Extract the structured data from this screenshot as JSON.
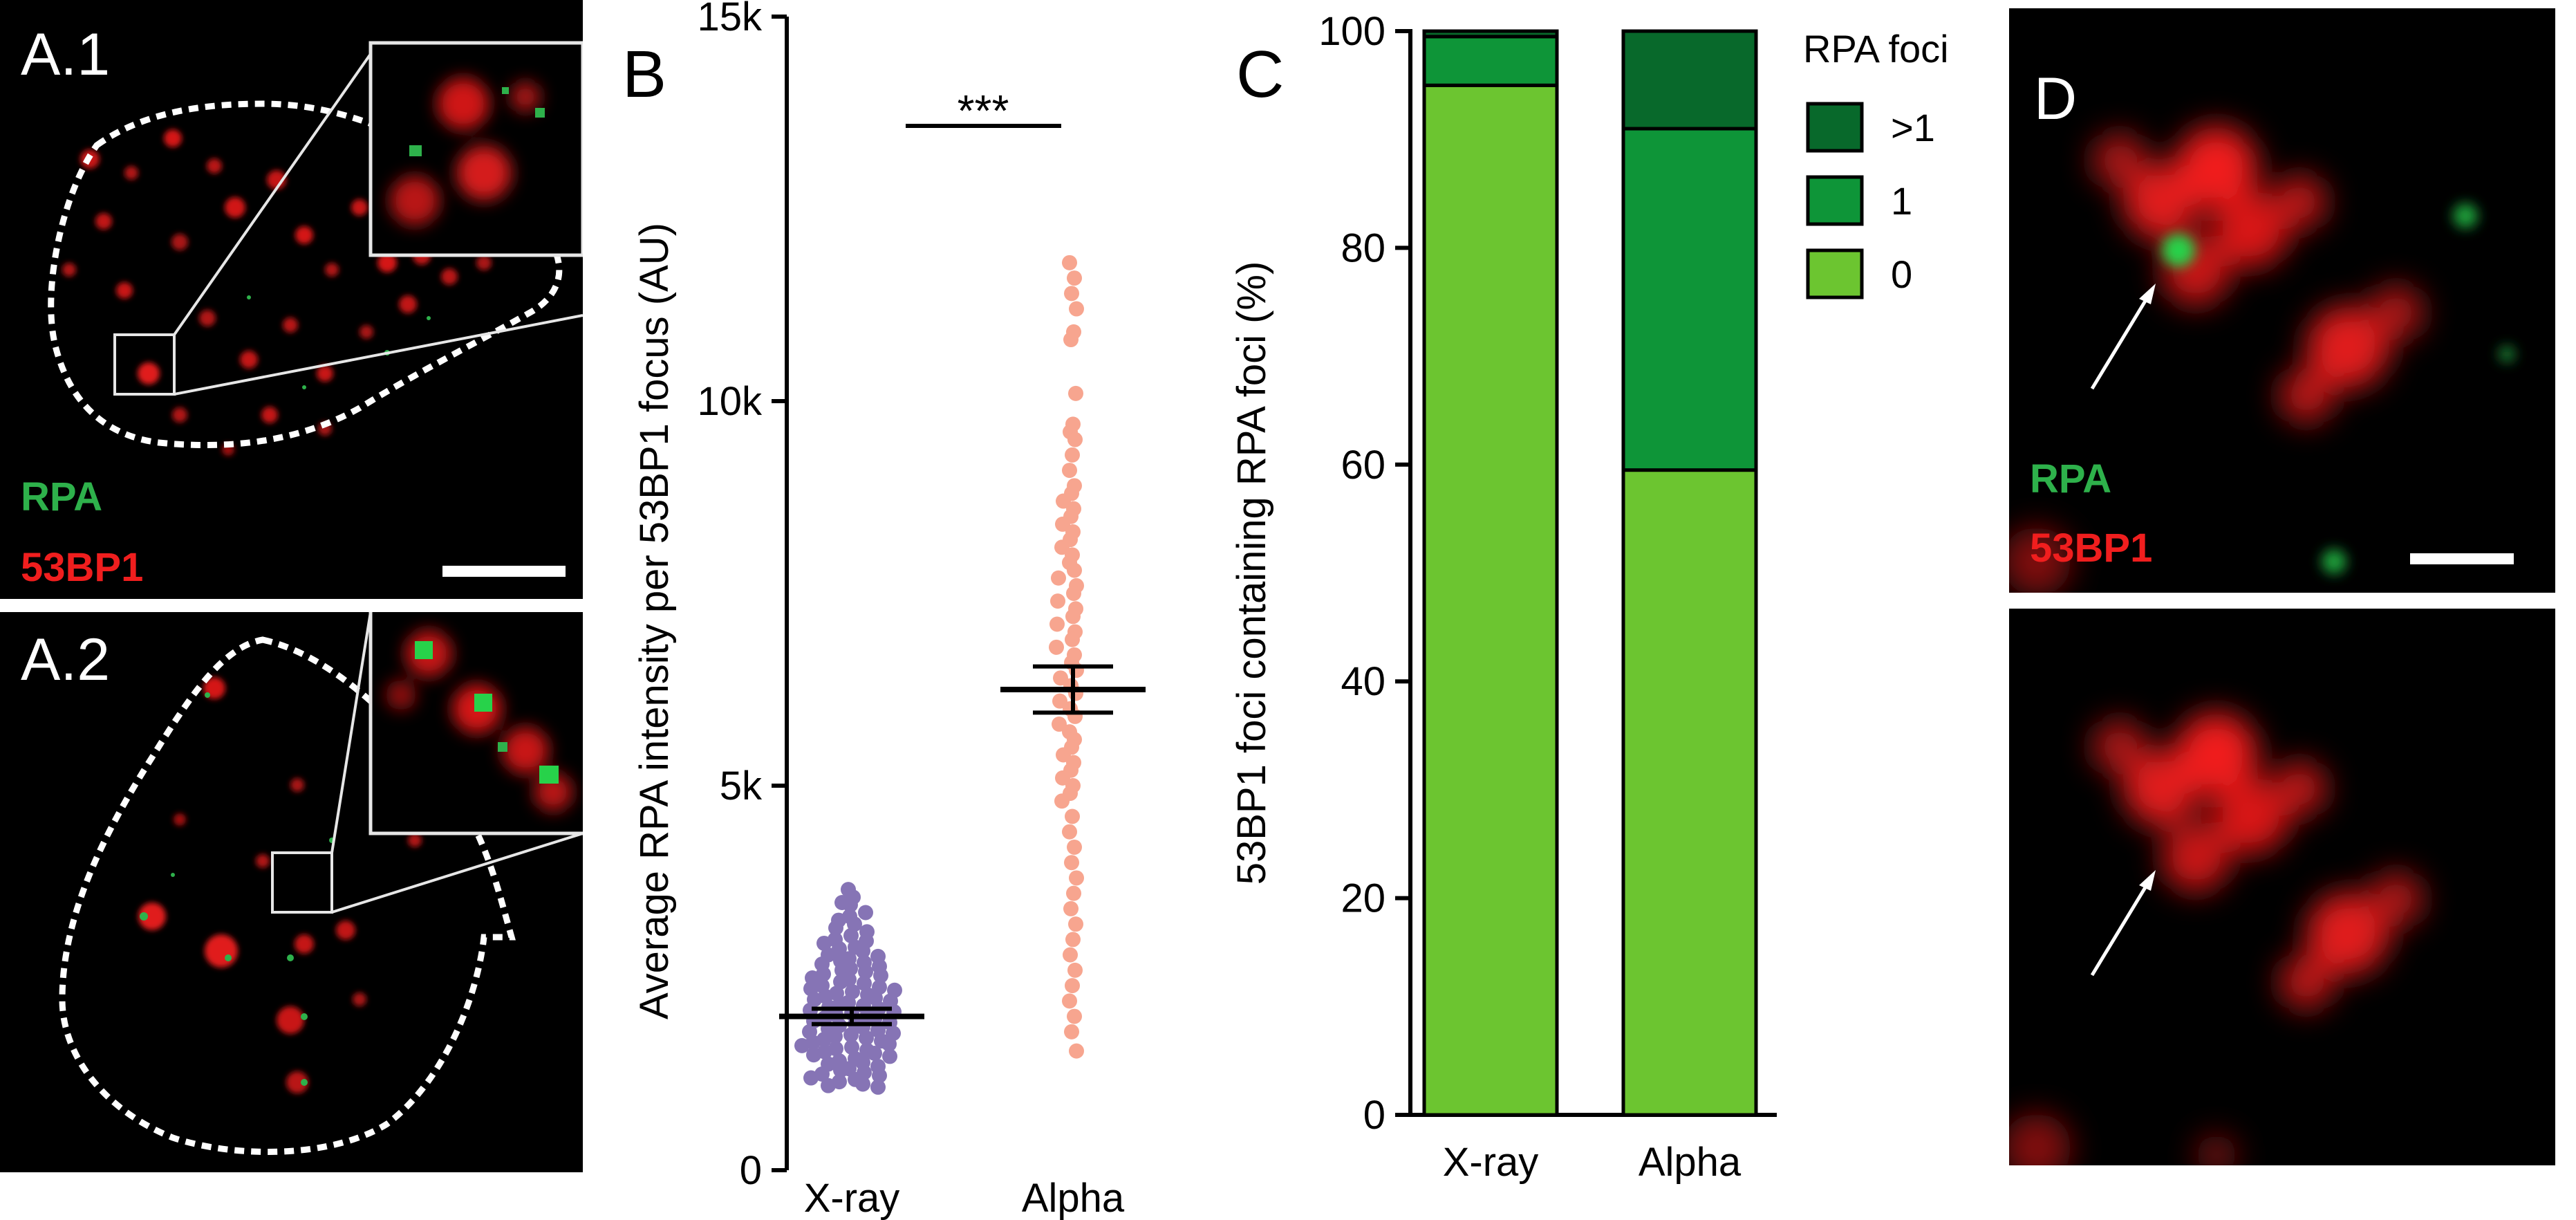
{
  "panels": {
    "a1": {
      "label": "A.1",
      "legend_green": "RPA",
      "legend_red": "53BP1"
    },
    "a2": {
      "label": "A.2"
    },
    "d": {
      "label": "D",
      "legend_green": "RPA",
      "legend_red": "53BP1"
    }
  },
  "colors": {
    "xray_points": "#8674b5",
    "alpha_points": "#f7a58f",
    "rpa_green": "#2eb14b",
    "bp_red": "#f01e1e",
    "stack_0": "#6cc530",
    "stack_1": "#0e9538",
    "stack_gt1": "#08692b"
  },
  "chart_data": [
    {
      "panel": "B",
      "type": "scatter",
      "ylabel": "Average RPA intensity per 53BP1 focus (AU)",
      "categories": [
        "X-ray",
        "Alpha"
      ],
      "ylim": [
        0,
        15000
      ],
      "yticks": [
        0,
        5000,
        10000,
        15000
      ],
      "ytick_labels": [
        "0",
        "5k",
        "10k",
        "15k"
      ],
      "significance": "***",
      "series": [
        {
          "category": "X-ray",
          "mean": 2000,
          "sem_low": 1900,
          "sem_high": 2100,
          "values": [
            3650,
            3550,
            3450,
            3480,
            3350,
            3300,
            3200,
            3250,
            3150,
            3100,
            3050,
            3000,
            2980,
            2950,
            2900,
            2880,
            2850,
            2800,
            2780,
            2750,
            2720,
            2700,
            2680,
            2650,
            2620,
            2600,
            2580,
            2550,
            2530,
            2500,
            2480,
            2450,
            2430,
            2400,
            2380,
            2360,
            2340,
            2320,
            2300,
            2280,
            2260,
            2240,
            2220,
            2200,
            2180,
            2160,
            2140,
            2120,
            2100,
            2080,
            2060,
            2040,
            2020,
            2000,
            1980,
            1960,
            1940,
            1920,
            1900,
            1880,
            1860,
            1840,
            1820,
            1800,
            1780,
            1760,
            1740,
            1720,
            1700,
            1680,
            1660,
            1640,
            1620,
            1600,
            1580,
            1560,
            1540,
            1520,
            1500,
            1480,
            1450,
            1420,
            1400,
            1380,
            1350,
            1320,
            1300,
            1270,
            1250,
            1230,
            1200,
            1180,
            1150,
            1120,
            1100,
            1080
          ]
        },
        {
          "category": "Alpha",
          "mean": 6250,
          "sem_low": 5950,
          "sem_high": 6550,
          "values": [
            11800,
            11600,
            11400,
            11200,
            10900,
            10800,
            10100,
            9700,
            9600,
            9500,
            9300,
            9100,
            8900,
            8800,
            8700,
            8600,
            8500,
            8400,
            8300,
            8200,
            8100,
            8000,
            7900,
            7800,
            7700,
            7600,
            7500,
            7400,
            7300,
            7200,
            7100,
            7000,
            6900,
            6800,
            6700,
            6600,
            6500,
            6400,
            6300,
            6200,
            6100,
            6000,
            5900,
            5800,
            5700,
            5600,
            5500,
            5400,
            5300,
            5200,
            5100,
            5000,
            4900,
            4800,
            4600,
            4400,
            4200,
            4000,
            3800,
            3600,
            3400,
            3200,
            3000,
            2800,
            2600,
            2400,
            2200,
            2000,
            1800,
            1550
          ]
        }
      ]
    },
    {
      "panel": "C",
      "type": "bar",
      "stacked": true,
      "ylabel": "53BP1 foci containing RPA foci (%)",
      "categories": [
        "X-ray",
        "Alpha"
      ],
      "ylim": [
        0,
        100
      ],
      "yticks": [
        0,
        20,
        40,
        60,
        80,
        100
      ],
      "legend_title": "RPA foci",
      "legend_position": "top-right",
      "series": [
        {
          "name": "0",
          "values": [
            95,
            59.5
          ]
        },
        {
          "name": "1",
          "values": [
            4.5,
            31.5
          ]
        },
        {
          "name": ">1",
          "values": [
            0.5,
            9
          ]
        }
      ]
    }
  ]
}
